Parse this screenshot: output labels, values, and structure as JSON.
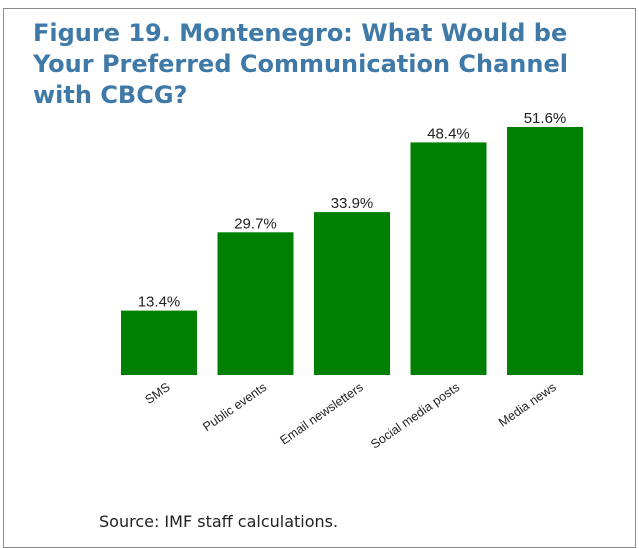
{
  "figure_title": "Figure 19. Montenegro: What Would be Your Preferred Communication Channel with CBCG?",
  "source_note": "Source: IMF staff calculations.",
  "chart_data": {
    "type": "bar",
    "categories": [
      "SMS",
      "Public events",
      "Email newsletters",
      "Social media posts",
      "Media news"
    ],
    "values": [
      13.4,
      29.7,
      33.9,
      48.4,
      51.6
    ],
    "value_labels": [
      "13.4%",
      "29.7%",
      "33.9%",
      "48.4%",
      "51.6%"
    ],
    "unit": "%",
    "ylim": [
      0,
      51.6
    ],
    "bar_color": "#008000",
    "grid": false,
    "legend": "none"
  }
}
